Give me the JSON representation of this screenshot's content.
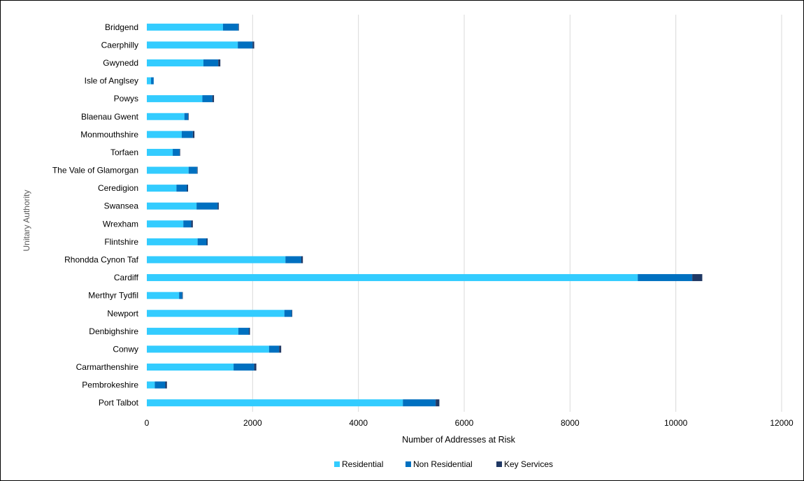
{
  "chart_data": {
    "type": "bar",
    "orientation": "horizontal",
    "stacked": true,
    "title": "",
    "xlabel": "Number  of Addresses at Risk",
    "ylabel": "Unitary Authority",
    "xlim": [
      0,
      12000
    ],
    "x_ticks": [
      "0",
      "2000",
      "4000",
      "6000",
      "8000",
      "10000",
      "12000"
    ],
    "grid": "vertical",
    "legend_position": "bottom",
    "categories": [
      "Bridgend",
      "Caerphilly",
      "Gwynedd",
      "Isle of Anglsey",
      "Powys",
      "Blaenau Gwent",
      "Monmouthshire",
      "Torfaen",
      "The Vale of Glamorgan",
      "Ceredigion",
      "Swansea",
      "Wrexham",
      "Flintshire",
      "Rhondda Cynon Taf",
      "Cardiff",
      "Merthyr Tydfil",
      "Newport",
      "Denbighshire",
      "Conwy",
      "Carmarthenshire",
      "Pembrokeshire",
      "Port Talbot"
    ],
    "series": [
      {
        "name": "Residential",
        "color": "#33ccff",
        "values": [
          1440,
          1720,
          1070,
          80,
          1050,
          710,
          660,
          490,
          790,
          560,
          940,
          690,
          960,
          2620,
          9280,
          610,
          2600,
          1730,
          2310,
          1640,
          150,
          4840
        ]
      },
      {
        "name": "Non Residential",
        "color": "#0070c0",
        "values": [
          290,
          280,
          280,
          50,
          190,
          70,
          210,
          130,
          160,
          200,
          400,
          150,
          170,
          300,
          1030,
          60,
          140,
          200,
          190,
          390,
          200,
          620
        ]
      },
      {
        "name": "Key Services",
        "color": "#203864",
        "values": [
          10,
          30,
          40,
          0,
          30,
          10,
          30,
          10,
          10,
          20,
          20,
          30,
          20,
          30,
          190,
          10,
          10,
          20,
          40,
          40,
          30,
          70
        ]
      }
    ]
  }
}
